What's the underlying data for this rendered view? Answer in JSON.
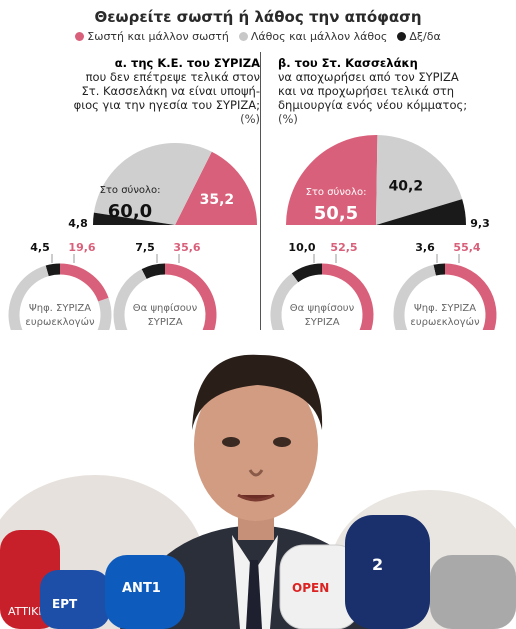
{
  "header": {
    "title": "Θεωρείτε σωστή ή λάθος την απόφαση",
    "legend": [
      {
        "label": "Σωστή και μάλλον σωστή",
        "color": "#d9607a"
      },
      {
        "label": "Λάθος και μάλλον λάθος",
        "color": "#c8c8c8"
      },
      {
        "label": "Δξ/δα",
        "color": "#1a1a1a"
      }
    ]
  },
  "questions": {
    "left": {
      "lead": "α. της Κ.Ε. του ΣΥΡΙΖΑ",
      "line2": "που δεν επέτρεψε τελικά στον",
      "line3": "Στ. Κασσελάκη να είναι υποψή-",
      "line4": "φιος για την ηγεσία του ΣΥΡΙΖΑ;",
      "unit": "(%)"
    },
    "right": {
      "lead": "β. του Στ. Κασσελάκη",
      "line2": "να αποχωρήσει από τον ΣΥΡΙΖΑ",
      "line3": "και να προχωρήσει τελικά στη",
      "line4": "δημιουργία ενός νέου κόμματος;",
      "unit": "(%)"
    }
  },
  "chart_data": [
    {
      "type": "pie",
      "id": "total-a",
      "center_label": "Στο σύνολο:",
      "categories": [
        "Σωστή και μάλλον σωστή",
        "Λάθος και μάλλον λάθος",
        "Δξ/δα"
      ],
      "values": [
        35.2,
        60.0,
        4.8
      ],
      "value_labels": [
        "35,2",
        "60,0",
        "4,8"
      ]
    },
    {
      "type": "pie",
      "id": "total-b",
      "center_label": "Στο σύνολο:",
      "categories": [
        "Σωστή και μάλλον σωστή",
        "Λάθος και μάλλον λάθος",
        "Δξ/δα"
      ],
      "values": [
        50.5,
        40.2,
        9.3
      ],
      "value_labels": [
        "50,5",
        "40,2",
        "9,3"
      ]
    },
    {
      "type": "pie",
      "id": "donut-a1",
      "label": "Ψηφ. ΣΥΡΙΖΑ ευρωεκλογών",
      "values": [
        19.6,
        75.9,
        4.5
      ],
      "value_labels": [
        "19,6",
        "75,9",
        "4,5"
      ]
    },
    {
      "type": "pie",
      "id": "donut-a2",
      "label": "Θα ψηφίσουν ΣΥΡΙΖΑ",
      "values": [
        35.6,
        56.9,
        7.5
      ],
      "value_labels": [
        "35,6",
        "56,9",
        "7,5"
      ]
    },
    {
      "type": "pie",
      "id": "donut-b1",
      "label": "Θα ψηφίσουν ΣΥΡΙΖΑ",
      "values": [
        52.5,
        37.5,
        10.0
      ],
      "value_labels": [
        "52,5",
        "37,5",
        "10,0"
      ]
    },
    {
      "type": "pie",
      "id": "donut-b2",
      "label": "Ψηφ. ΣΥΡΙΖΑ ευρωεκλογών",
      "values": [
        55.4,
        41.0,
        3.6
      ],
      "value_labels": [
        "55,4",
        "41,0",
        "3,6"
      ]
    }
  ],
  "photo": {
    "microphone_labels": [
      "ΑΝΤ1",
      "ΕΡΤ",
      "ATTIKH",
      "OPEN",
      "2"
    ]
  }
}
